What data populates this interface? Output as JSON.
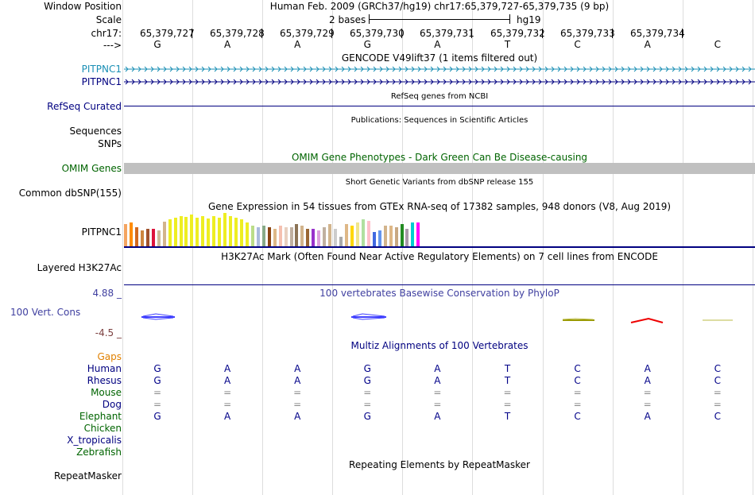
{
  "header": {
    "window_position_label": "Window Position",
    "window_position_value": "Human Feb. 2009 (GRCh37/hg19)   chr17:65,379,727-65,379,735 (9 bp)",
    "scale_label": "Scale",
    "scale_value": "2 bases",
    "scale_db": "hg19",
    "chrom_label": "chr17:",
    "strand_label": "--->",
    "positions": [
      "65,379,727",
      "65,379,728",
      "65,379,729",
      "65,379,730",
      "65,379,731",
      "65,379,732",
      "65,379,733",
      "65,379,734"
    ],
    "bases": [
      "G",
      "A",
      "A",
      "G",
      "A",
      "T",
      "C",
      "A",
      "C"
    ]
  },
  "tracks": {
    "gencode": {
      "title": "GENCODE V49lift37 (1 items filtered out)",
      "items": [
        "PITPNC1",
        "PITPNC1"
      ],
      "colors": [
        "#1a8fb5",
        "#000080"
      ]
    },
    "refseq": {
      "label": "RefSeq Curated",
      "title": "RefSeq genes from NCBI"
    },
    "publications": {
      "label": "Sequences",
      "title": "Publications: Sequences in Scientific Articles"
    },
    "snps": {
      "label": "SNPs"
    },
    "omim": {
      "label": "OMIM Genes",
      "title": "OMIM Gene Phenotypes - Dark Green Can Be Disease-causing",
      "color": "#006400"
    },
    "dbsnp": {
      "label": "Common dbSNP(155)",
      "title": "Short Genetic Variants from dbSNP release 155"
    },
    "gtex": {
      "label": "PITPNC1",
      "title": "Gene Expression in 54 tissues from GTEx RNA-seq of 17382 samples, 948 donors (V8, Aug 2019)"
    },
    "h3k27ac": {
      "label": "Layered H3K27Ac",
      "title": "H3K27Ac Mark (Often Found Near Active Regulatory Elements) on 7 cell lines from ENCODE"
    },
    "phylop": {
      "label": "100 Vert. Cons",
      "title": "100 vertebrates Basewise Conservation by PhyloP",
      "max": "4.88 _",
      "min": "-4.5 _"
    },
    "multiz": {
      "title": "Multiz Alignments of 100 Vertebrates",
      "gaps_label": "Gaps",
      "species": [
        {
          "name": "Human",
          "color": "#000080",
          "bases": [
            "G",
            "A",
            "A",
            "G",
            "A",
            "T",
            "C",
            "A",
            "C"
          ]
        },
        {
          "name": "Rhesus",
          "color": "#000080",
          "bases": [
            "G",
            "A",
            "A",
            "G",
            "A",
            "T",
            "C",
            "A",
            "C"
          ]
        },
        {
          "name": "Mouse",
          "color": "#006400",
          "bases": [
            "=",
            "=",
            "=",
            "=",
            "=",
            "=",
            "=",
            "=",
            "="
          ]
        },
        {
          "name": "Dog",
          "color": "#000080",
          "bases": [
            "=",
            "=",
            "=",
            "=",
            "=",
            "=",
            "=",
            "=",
            "="
          ]
        },
        {
          "name": "Elephant",
          "color": "#006400",
          "bases": [
            "G",
            "A",
            "A",
            "G",
            "A",
            "T",
            "C",
            "A",
            "C"
          ]
        },
        {
          "name": "Chicken",
          "color": "#006400",
          "bases": []
        },
        {
          "name": "X_tropicalis",
          "color": "#000080",
          "bases": []
        },
        {
          "name": "Zebrafish",
          "color": "#006400",
          "bases": []
        }
      ]
    },
    "repeatmasker": {
      "label": "RepeatMasker",
      "title": "Repeating Elements by RepeatMasker"
    }
  },
  "colors": {
    "gencode_light": "#1a8fb5",
    "gencode_dark": "#000080",
    "phylop_label": "#4040a0",
    "gaps": "#e08000",
    "phylop_min": "#7b3f3f"
  },
  "gtex_values": [
    {
      "c": "#f4a460",
      "v": 28
    },
    {
      "c": "#ff8c00",
      "v": 30
    },
    {
      "c": "#d2691e",
      "v": 24
    },
    {
      "c": "#cd853f",
      "v": 20
    },
    {
      "c": "#a0522d",
      "v": 22
    },
    {
      "c": "#dc143c",
      "v": 22
    },
    {
      "c": "#ccbb99",
      "v": 20
    },
    {
      "c": "#d2b48c",
      "v": 31
    },
    {
      "c": "#eeee22",
      "v": 34
    },
    {
      "c": "#eeee22",
      "v": 36
    },
    {
      "c": "#eeee22",
      "v": 38
    },
    {
      "c": "#eeee22",
      "v": 37
    },
    {
      "c": "#eeee22",
      "v": 40
    },
    {
      "c": "#eeee22",
      "v": 36
    },
    {
      "c": "#eeee22",
      "v": 38
    },
    {
      "c": "#eeee22",
      "v": 35
    },
    {
      "c": "#eeee22",
      "v": 38
    },
    {
      "c": "#eeee22",
      "v": 36
    },
    {
      "c": "#eeee22",
      "v": 42
    },
    {
      "c": "#eeee22",
      "v": 38
    },
    {
      "c": "#eeee22",
      "v": 36
    },
    {
      "c": "#eeee22",
      "v": 34
    },
    {
      "c": "#eeee22",
      "v": 30
    },
    {
      "c": "#bbdd88",
      "v": 26
    },
    {
      "c": "#aabbdd",
      "v": 24
    },
    {
      "c": "#88aa88",
      "v": 26
    },
    {
      "c": "#8b4513",
      "v": 24
    },
    {
      "c": "#deb887",
      "v": 22
    },
    {
      "c": "#f5c0b0",
      "v": 26
    },
    {
      "c": "#e8d0c0",
      "v": 24
    },
    {
      "c": "#c0b0a0",
      "v": 24
    },
    {
      "c": "#8b7355",
      "v": 28
    },
    {
      "c": "#d2b48c",
      "v": 26
    },
    {
      "c": "#996633",
      "v": 22
    },
    {
      "c": "#9932cc",
      "v": 22
    },
    {
      "c": "#dda0dd",
      "v": 20
    },
    {
      "c": "#c0b0a0",
      "v": 24
    },
    {
      "c": "#d2b48c",
      "v": 28
    },
    {
      "c": "#cccccc",
      "v": 22
    },
    {
      "c": "#aaaaaa",
      "v": 12
    },
    {
      "c": "#deb887",
      "v": 28
    },
    {
      "c": "#ffd700",
      "v": 26
    },
    {
      "c": "#f0e68c",
      "v": 30
    },
    {
      "c": "#b0e0a0",
      "v": 34
    },
    {
      "c": "#ffc0cb",
      "v": 32
    },
    {
      "c": "#4169e1",
      "v": 18
    },
    {
      "c": "#6495ed",
      "v": 20
    },
    {
      "c": "#d2b48c",
      "v": 26
    },
    {
      "c": "#deb887",
      "v": 26
    },
    {
      "c": "#c8a882",
      "v": 24
    },
    {
      "c": "#228b22",
      "v": 28
    },
    {
      "c": "#aa99aa",
      "v": 22
    },
    {
      "c": "#00ced1",
      "v": 30
    },
    {
      "c": "#ff00ff",
      "v": 30
    }
  ]
}
